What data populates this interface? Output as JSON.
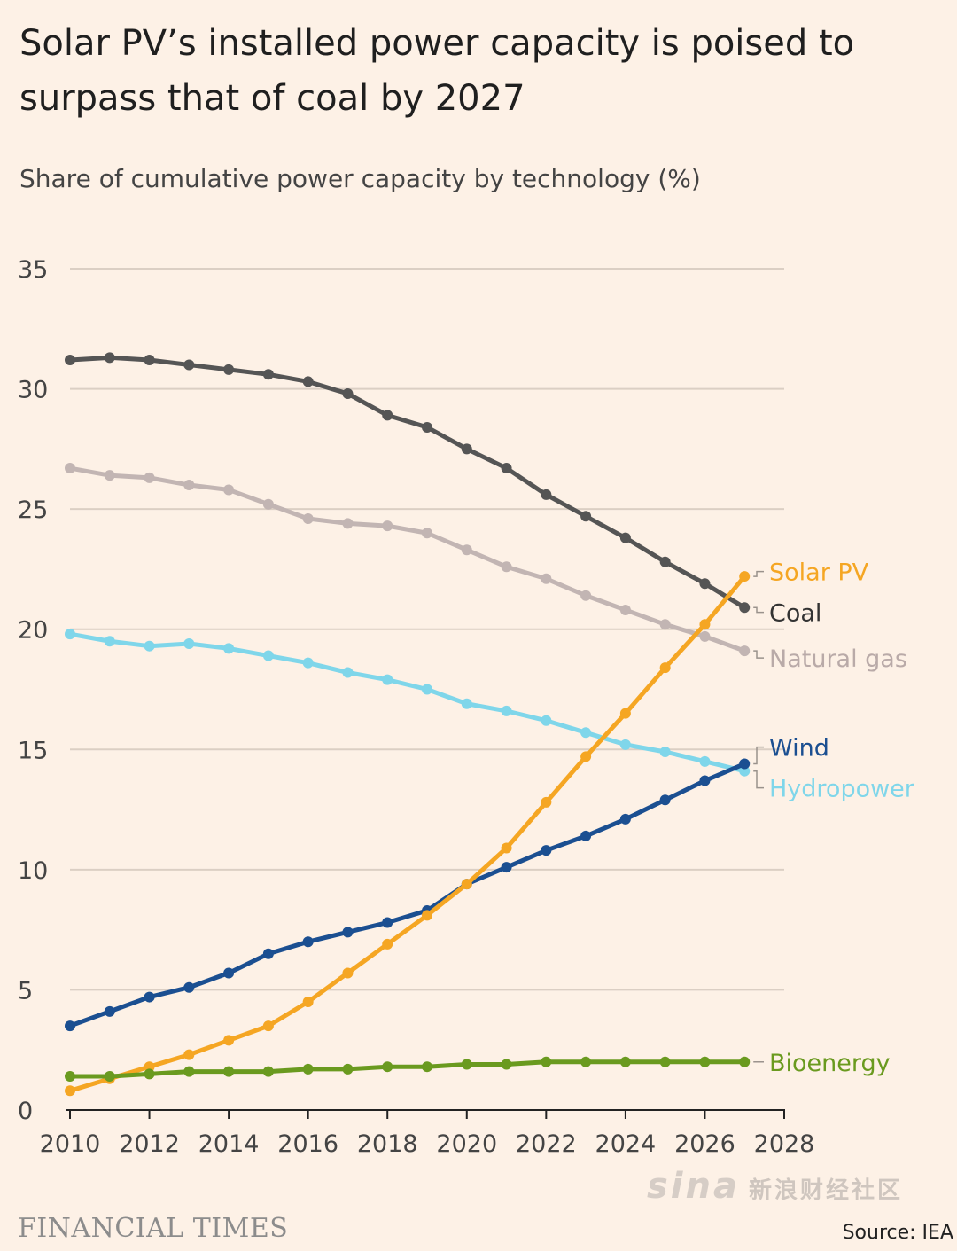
{
  "header": {
    "title": "Solar PV’s installed power capacity is poised to surpass that of coal by 2027",
    "subtitle": "Share of cumulative power capacity by technology (%)"
  },
  "footer": {
    "publisher": "FINANCIAL TIMES",
    "source": "Source: IEA"
  },
  "watermark": {
    "logo": "sina",
    "text": "新浪财经社区"
  },
  "chart_data": {
    "type": "line",
    "title": "Solar PV’s installed power capacity is poised to surpass that of coal by 2027",
    "subtitle": "Share of cumulative power capacity by technology (%)",
    "x": [
      2010,
      2011,
      2012,
      2013,
      2014,
      2015,
      2016,
      2017,
      2018,
      2019,
      2020,
      2021,
      2022,
      2023,
      2024,
      2025,
      2026,
      2027
    ],
    "xlim": [
      2010,
      2028
    ],
    "xticks": [
      "2010",
      "2012",
      "2014",
      "2016",
      "2018",
      "2020",
      "2022",
      "2024",
      "2026",
      "2028"
    ],
    "ylim": [
      0,
      35
    ],
    "yticks": [
      "0",
      "5",
      "10",
      "15",
      "20",
      "25",
      "30",
      "35"
    ],
    "grid": true,
    "legend": "direct labels at right end of lines",
    "series": [
      {
        "name": "Coal",
        "color": "#555555",
        "label_color": "#333333",
        "values": [
          31.2,
          31.3,
          31.2,
          31.0,
          30.8,
          30.6,
          30.3,
          29.8,
          28.9,
          28.4,
          27.5,
          26.7,
          25.6,
          24.7,
          23.8,
          22.8,
          21.9,
          20.9
        ]
      },
      {
        "name": "Natural gas",
        "color": "#c2b5b3",
        "label_color": "#b9aaa8",
        "values": [
          26.7,
          26.4,
          26.3,
          26.0,
          25.8,
          25.2,
          24.6,
          24.4,
          24.3,
          24.0,
          23.3,
          22.6,
          22.1,
          21.4,
          20.8,
          20.2,
          19.7,
          19.1
        ]
      },
      {
        "name": "Hydropower",
        "color": "#7fd6ea",
        "label_color": "#7fd6ea",
        "values": [
          19.8,
          19.5,
          19.3,
          19.4,
          19.2,
          18.9,
          18.6,
          18.2,
          17.9,
          17.5,
          16.9,
          16.6,
          16.2,
          15.7,
          15.2,
          14.9,
          14.5,
          14.1
        ]
      },
      {
        "name": "Wind",
        "color": "#1b4f91",
        "label_color": "#1b4f91",
        "values": [
          3.5,
          4.1,
          4.7,
          5.1,
          5.7,
          6.5,
          7.0,
          7.4,
          7.8,
          8.3,
          9.4,
          10.1,
          10.8,
          11.4,
          12.1,
          12.9,
          13.7,
          14.4
        ]
      },
      {
        "name": "Solar PV",
        "color": "#f5a623",
        "label_color": "#f5a623",
        "values": [
          0.8,
          1.3,
          1.8,
          2.3,
          2.9,
          3.5,
          4.5,
          5.7,
          6.9,
          8.1,
          9.4,
          10.9,
          12.8,
          14.7,
          16.5,
          18.4,
          20.2,
          22.2
        ]
      },
      {
        "name": "Bioenergy",
        "color": "#6a9a1f",
        "label_color": "#6a9a1f",
        "values": [
          1.4,
          1.4,
          1.5,
          1.6,
          1.6,
          1.6,
          1.7,
          1.7,
          1.8,
          1.8,
          1.9,
          1.9,
          2.0,
          2.0,
          2.0,
          2.0,
          2.0,
          2.0
        ]
      }
    ]
  }
}
